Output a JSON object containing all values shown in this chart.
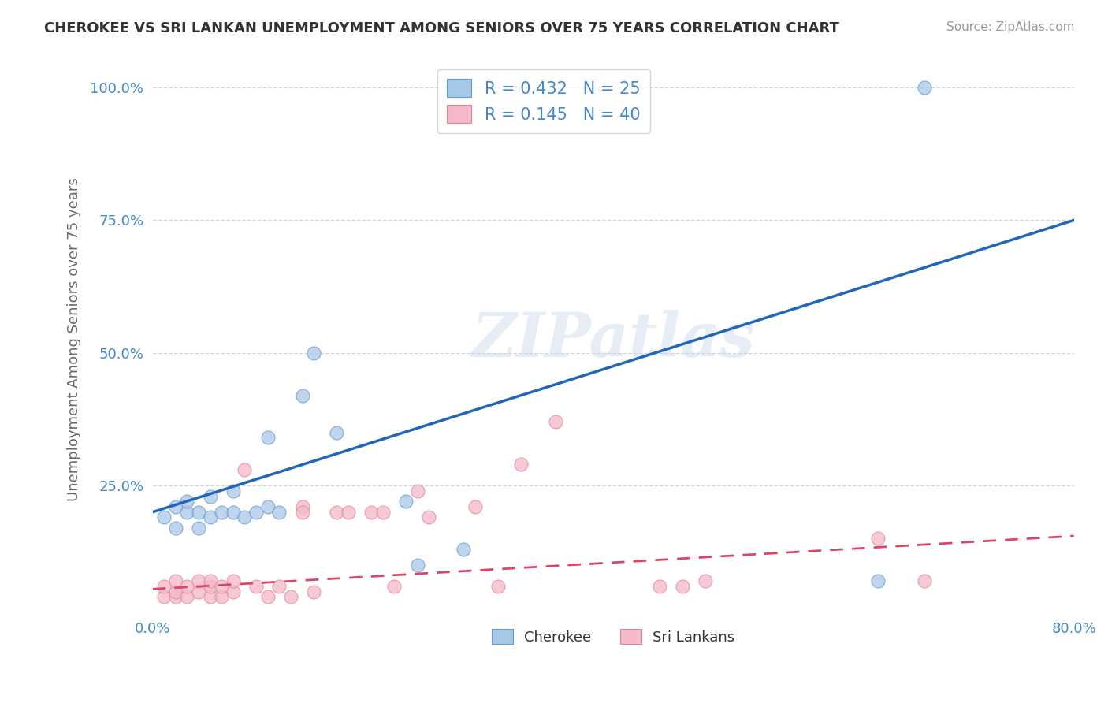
{
  "title": "CHEROKEE VS SRI LANKAN UNEMPLOYMENT AMONG SENIORS OVER 75 YEARS CORRELATION CHART",
  "source": "Source: ZipAtlas.com",
  "ylabel": "Unemployment Among Seniors over 75 years",
  "xlabel": "",
  "xlim": [
    0.0,
    0.8
  ],
  "ylim": [
    0.0,
    1.05
  ],
  "xtick_positions": [
    0.0,
    0.8
  ],
  "xticklabels": [
    "0.0%",
    "80.0%"
  ],
  "ytick_positions": [
    0.25,
    0.5,
    0.75,
    1.0
  ],
  "yticklabels": [
    "25.0%",
    "50.0%",
    "75.0%",
    "100.0%"
  ],
  "cherokee_color": "#a8c8e8",
  "cherokee_edge_color": "#6699cc",
  "srilanka_color": "#f4b8c8",
  "srilanka_edge_color": "#dd8899",
  "cherokee_line_color": "#2266bb",
  "srilanka_line_color": "#dd4466",
  "cherokee_R": 0.432,
  "cherokee_N": 25,
  "srilanka_R": 0.145,
  "srilanka_N": 40,
  "watermark": "ZIPatlas",
  "tick_color": "#4488cc",
  "cherokee_x": [
    0.01,
    0.02,
    0.02,
    0.03,
    0.03,
    0.04,
    0.04,
    0.05,
    0.05,
    0.06,
    0.07,
    0.07,
    0.08,
    0.09,
    0.1,
    0.1,
    0.11,
    0.13,
    0.14,
    0.16,
    0.22,
    0.23,
    0.27,
    0.63,
    0.67
  ],
  "cherokee_y": [
    0.19,
    0.21,
    0.17,
    0.2,
    0.22,
    0.17,
    0.2,
    0.19,
    0.23,
    0.2,
    0.2,
    0.24,
    0.19,
    0.2,
    0.34,
    0.21,
    0.2,
    0.42,
    0.5,
    0.35,
    0.22,
    0.1,
    0.13,
    0.07,
    1.0
  ],
  "srilanka_x": [
    0.01,
    0.01,
    0.02,
    0.02,
    0.02,
    0.03,
    0.03,
    0.04,
    0.04,
    0.05,
    0.05,
    0.05,
    0.06,
    0.06,
    0.07,
    0.07,
    0.08,
    0.09,
    0.1,
    0.11,
    0.12,
    0.13,
    0.13,
    0.14,
    0.16,
    0.17,
    0.19,
    0.2,
    0.21,
    0.23,
    0.24,
    0.28,
    0.3,
    0.32,
    0.35,
    0.44,
    0.46,
    0.48,
    0.63,
    0.67
  ],
  "srilanka_y": [
    0.04,
    0.06,
    0.04,
    0.05,
    0.07,
    0.04,
    0.06,
    0.05,
    0.07,
    0.04,
    0.06,
    0.07,
    0.04,
    0.06,
    0.05,
    0.07,
    0.28,
    0.06,
    0.04,
    0.06,
    0.04,
    0.21,
    0.2,
    0.05,
    0.2,
    0.2,
    0.2,
    0.2,
    0.06,
    0.24,
    0.19,
    0.21,
    0.06,
    0.29,
    0.37,
    0.06,
    0.06,
    0.07,
    0.15,
    0.07
  ],
  "background_color": "#ffffff",
  "grid_color": "#cccccc",
  "cherokee_line_x0": 0.0,
  "cherokee_line_y0": 0.2,
  "cherokee_line_x1": 0.8,
  "cherokee_line_y1": 0.75,
  "srilanka_line_x0": 0.0,
  "srilanka_line_y0": 0.055,
  "srilanka_line_x1": 0.8,
  "srilanka_line_y1": 0.155
}
